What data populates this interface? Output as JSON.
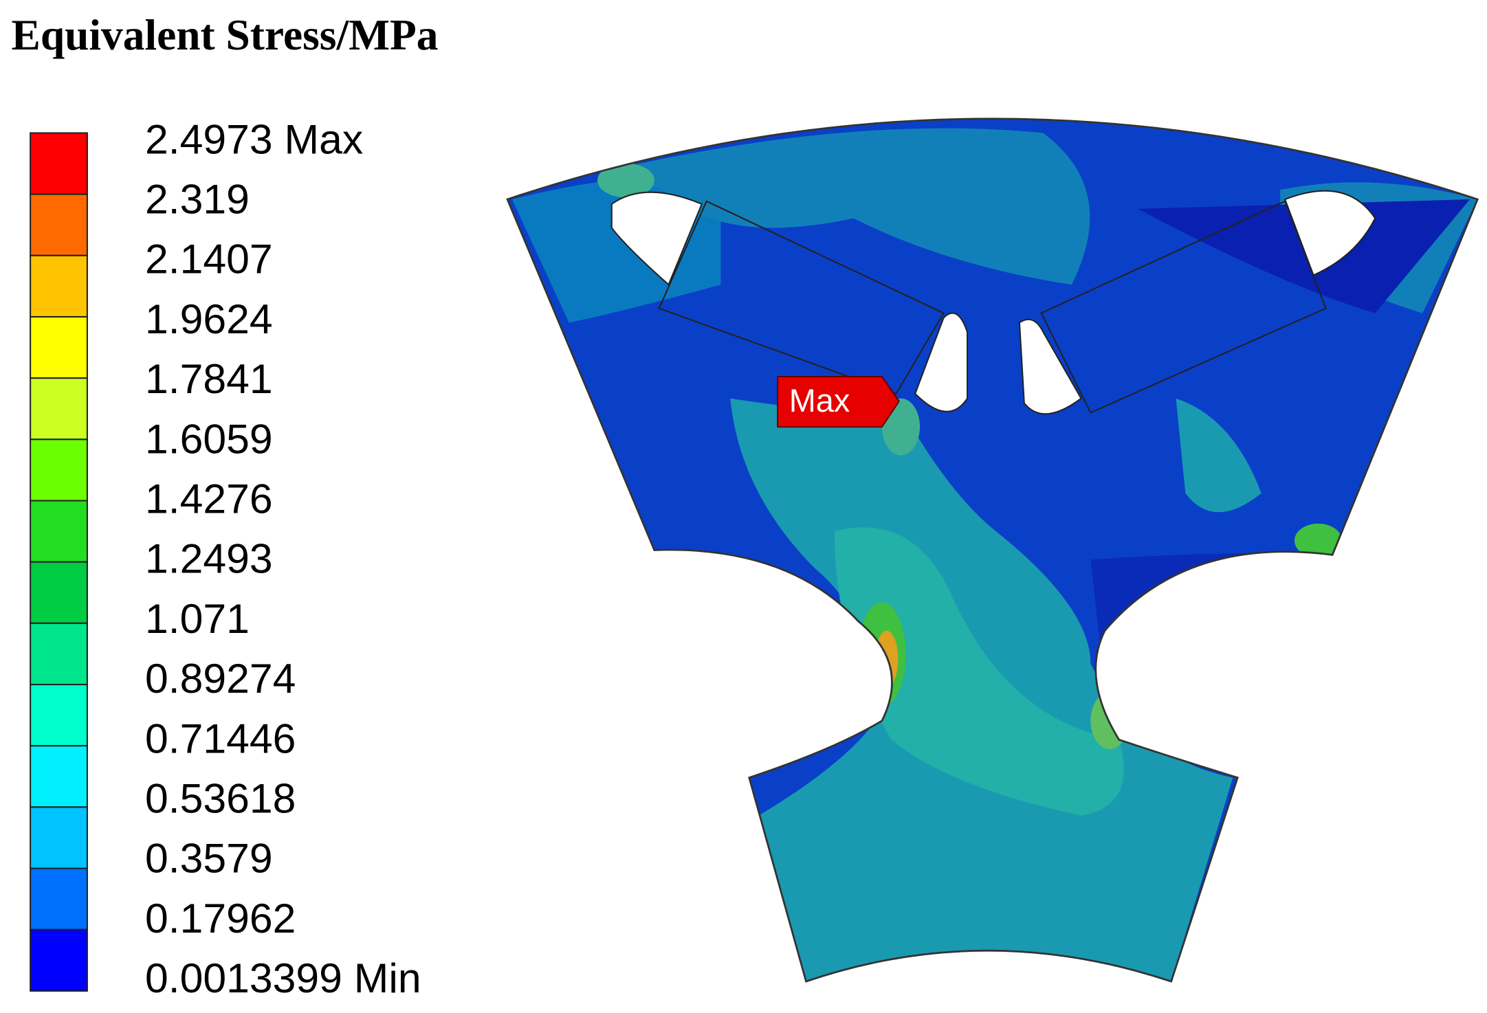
{
  "title": "Equivalent Stress/MPa",
  "legend": {
    "labels": [
      "2.4973 Max",
      "2.319",
      "2.1407",
      "1.9624",
      "1.7841",
      "1.6059",
      "1.4276",
      "1.2493",
      "1.071",
      "0.89274",
      "0.71446",
      "0.53618",
      "0.3579",
      "0.17962",
      "0.0013399 Min"
    ],
    "colors": [
      "#ff0000",
      "#ff6a00",
      "#ffc400",
      "#ffff00",
      "#ccff22",
      "#6cff00",
      "#22dd22",
      "#00cc44",
      "#00e68c",
      "#00ffcc",
      "#00f0ff",
      "#00c4ff",
      "#0070ff",
      "#0000ff"
    ]
  },
  "marker": "Max"
}
